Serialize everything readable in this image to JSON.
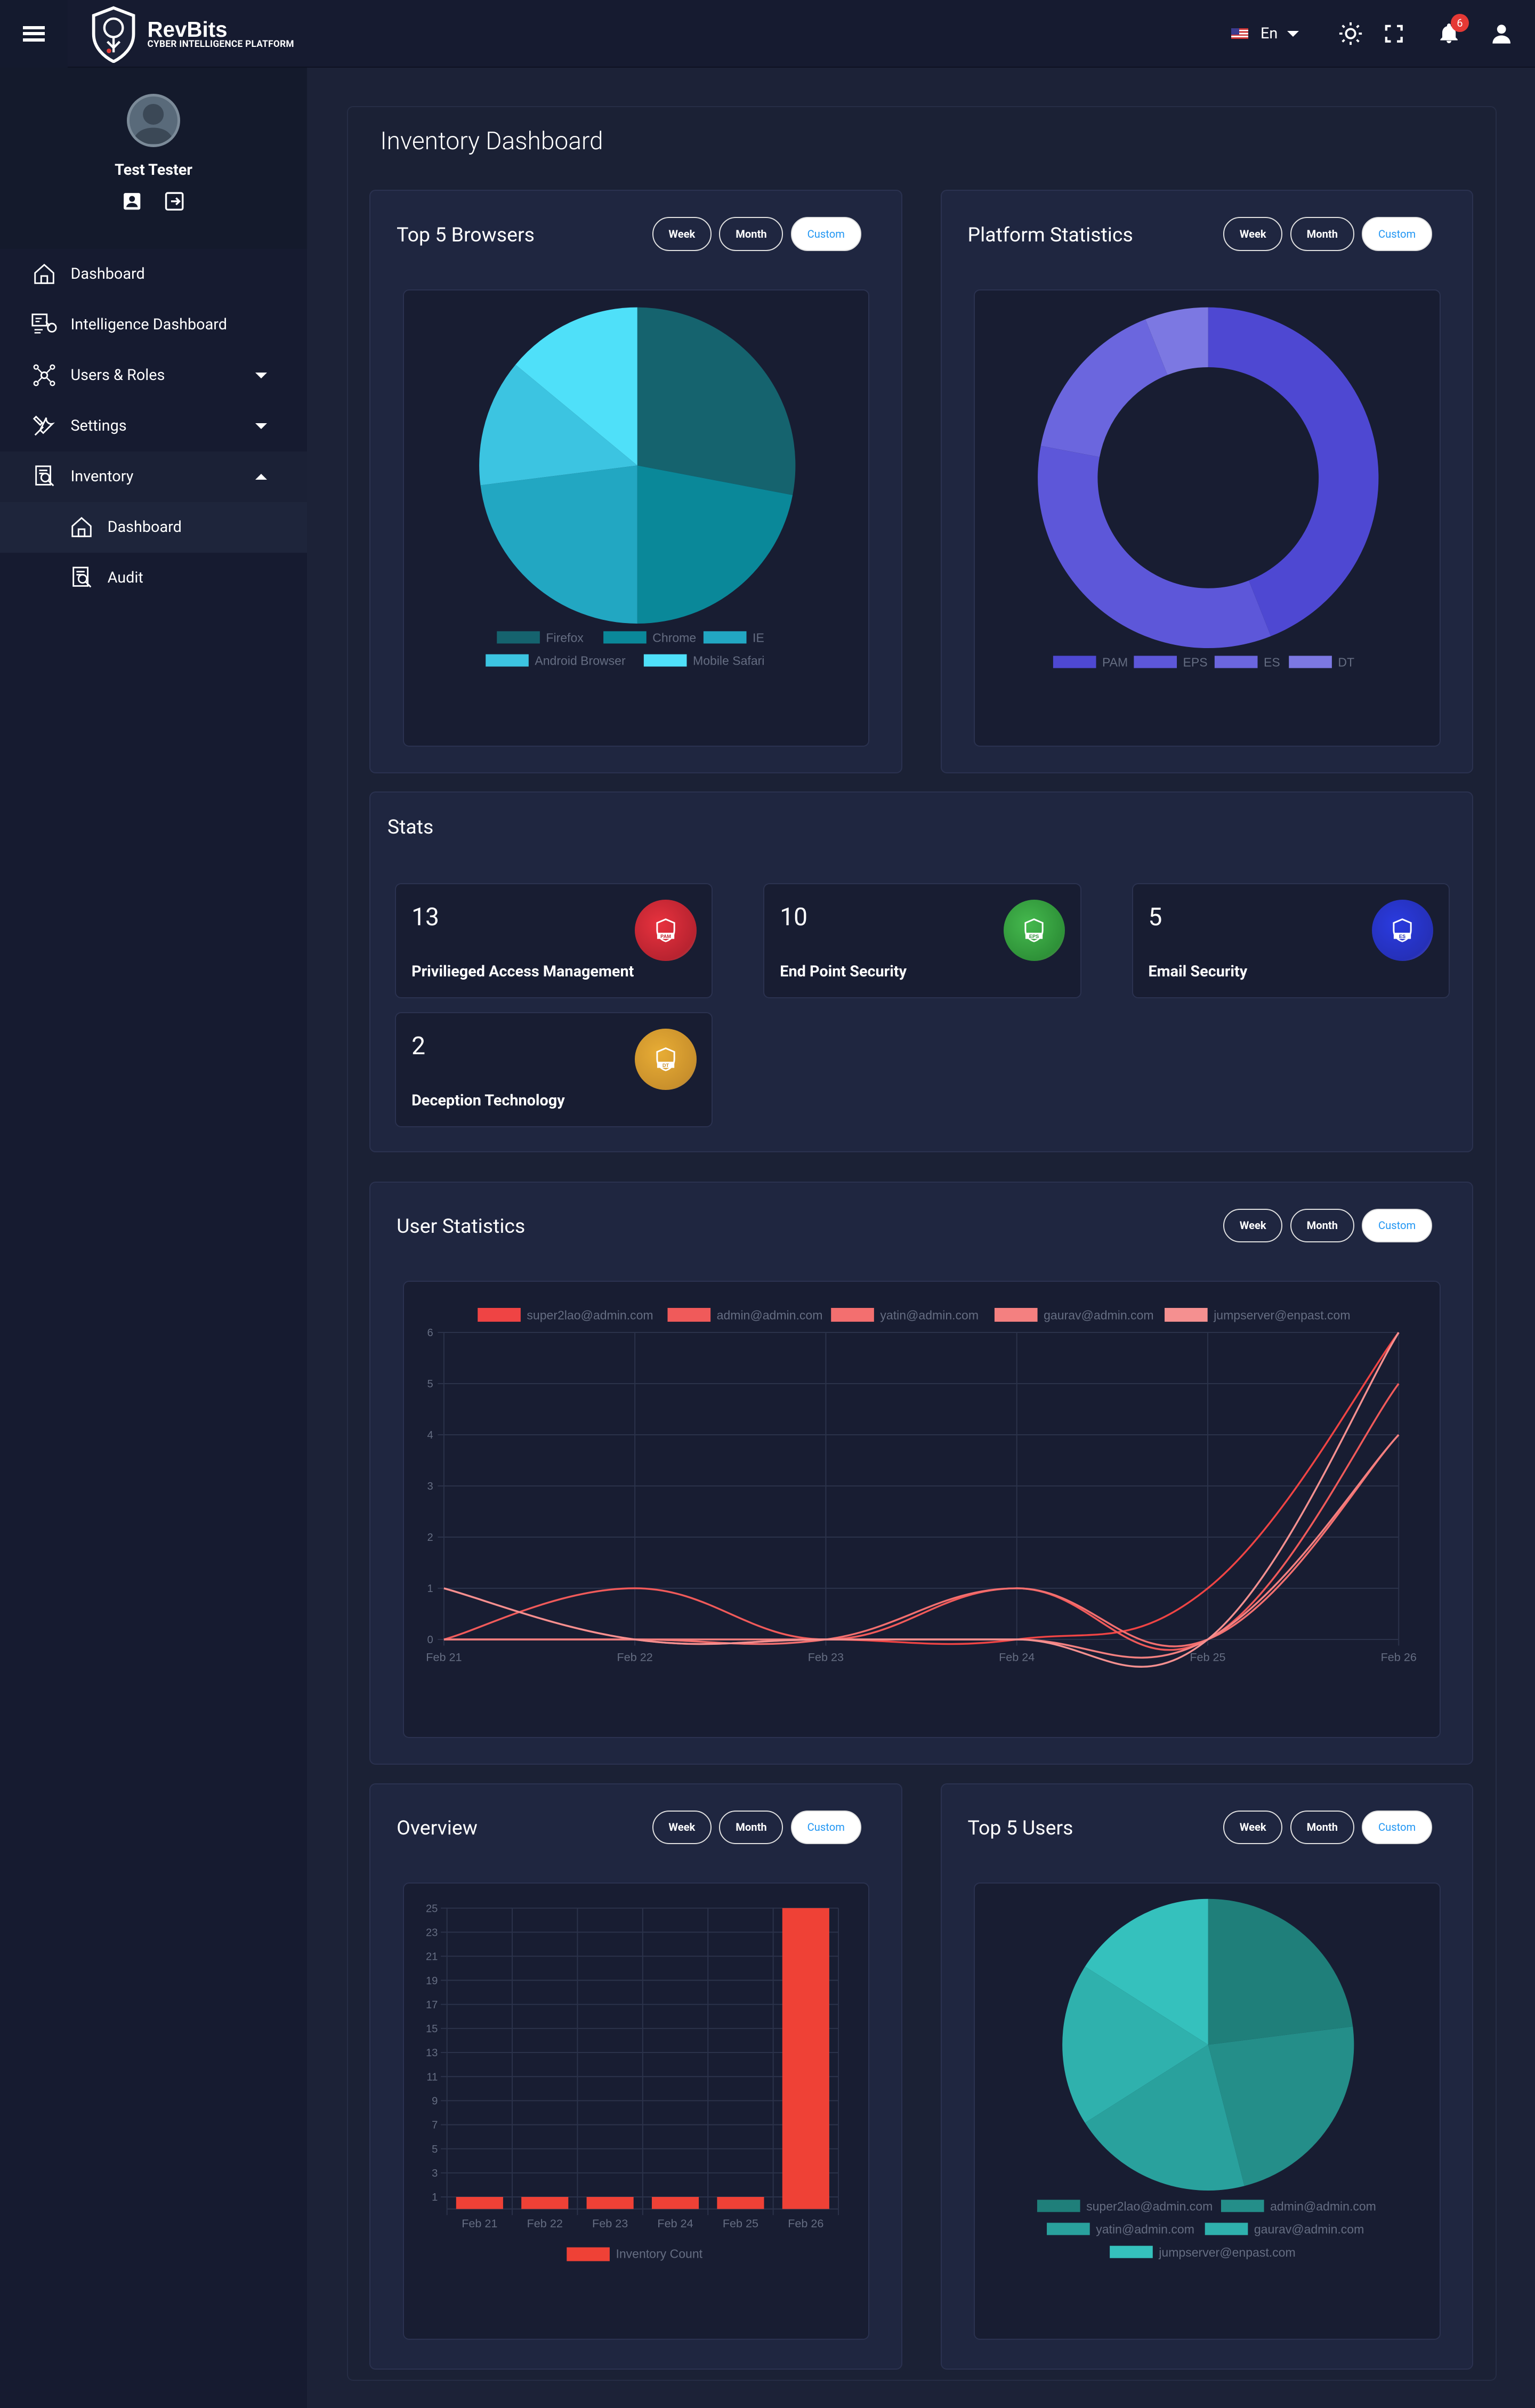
{
  "topbar": {
    "brand": "RevBits",
    "tagline": "CYBER INTELLIGENCE PLATFORM",
    "language": "En",
    "notifications": "6"
  },
  "profile": {
    "name": "Test Tester"
  },
  "sidebar": {
    "items": [
      {
        "label": "Dashboard",
        "icon": "home-icon"
      },
      {
        "label": "Intelligence Dashboard",
        "icon": "intelligence-icon"
      },
      {
        "label": "Users & Roles",
        "icon": "network-icon"
      },
      {
        "label": "Settings",
        "icon": "tools-icon"
      },
      {
        "label": "Inventory",
        "icon": "inventory-icon"
      }
    ],
    "subitems": [
      {
        "label": "Dashboard"
      },
      {
        "label": "Audit"
      }
    ]
  },
  "page": {
    "title": "Inventory Dashboard"
  },
  "filters": {
    "week": "Week",
    "month": "Month",
    "custom": "Custom"
  },
  "browsers": {
    "title": "Top 5 Browsers",
    "chart_data": {
      "type": "pie",
      "labels": [
        "Firefox",
        "Chrome",
        "IE",
        "Android Browser",
        "Mobile Safari"
      ],
      "values": [
        28,
        22,
        23,
        13,
        14
      ],
      "colors": [
        "#15636e",
        "#0a8899",
        "#22a7c2",
        "#3cc4e1",
        "#4fe0f9"
      ]
    }
  },
  "platform": {
    "title": "Platform Statistics",
    "chart_data": {
      "type": "pie",
      "labels": [
        "PAM",
        "EPS",
        "ES",
        "DT"
      ],
      "values": [
        44,
        34,
        16,
        6
      ],
      "colors": [
        "#4e48d2",
        "#5d57d9",
        "#6b66de",
        "#7c78e2"
      ]
    }
  },
  "stats": {
    "title": "Stats",
    "items": [
      {
        "value": "13",
        "label": "Privilieged Access Management",
        "badge": "PAM",
        "color": "#e53945"
      },
      {
        "value": "10",
        "label": "End Point Security",
        "badge": "EPS",
        "color": "#3fab4c"
      },
      {
        "value": "5",
        "label": "Email Security",
        "badge": "ES",
        "color": "#2c3bd6"
      },
      {
        "value": "2",
        "label": "Deception Technology",
        "badge": "DT",
        "color": "#e3a632"
      }
    ]
  },
  "userstats": {
    "title": "User Statistics",
    "chart_data": {
      "type": "line",
      "x": [
        "Feb 21",
        "Feb 22",
        "Feb 23",
        "Feb 24",
        "Feb 25",
        "Feb 26"
      ],
      "ylim": [
        0,
        6
      ],
      "series": [
        {
          "name": "super2lao@admin.com",
          "values": [
            1,
            0,
            0,
            0,
            1,
            6
          ],
          "color": "#ef4444"
        },
        {
          "name": "admin@admin.com",
          "values": [
            0,
            1,
            0,
            1,
            0,
            5
          ],
          "color": "#f05a5a"
        },
        {
          "name": "yatin@admin.com",
          "values": [
            0,
            0,
            0,
            1,
            0,
            4
          ],
          "color": "#f36f6f"
        },
        {
          "name": "gaurav@admin.com",
          "values": [
            0,
            0,
            0,
            0,
            0,
            4
          ],
          "color": "#f48080"
        },
        {
          "name": "jumpserver@enpast.com",
          "values": [
            1,
            0,
            0,
            0,
            0,
            6
          ],
          "color": "#f59090"
        }
      ]
    }
  },
  "overview": {
    "title": "Overview",
    "chart_data": {
      "type": "bar",
      "categories": [
        "Feb 21",
        "Feb 22",
        "Feb 23",
        "Feb 24",
        "Feb 25",
        "Feb 26"
      ],
      "values": [
        1,
        1,
        1,
        1,
        1,
        25
      ],
      "yticks": [
        1,
        3,
        5,
        7,
        9,
        11,
        13,
        15,
        17,
        19,
        21,
        23,
        25
      ],
      "series_name": "Inventory Count",
      "color": "#ef4136"
    }
  },
  "topusers": {
    "title": "Top 5 Users",
    "chart_data": {
      "type": "pie",
      "labels": [
        "super2lao@admin.com",
        "admin@admin.com",
        "yatin@admin.com",
        "gaurav@admin.com",
        "jumpserver@enpast.com"
      ],
      "values": [
        23,
        23,
        20,
        18,
        16
      ],
      "colors": [
        "#1f7f7a",
        "#248e89",
        "#29a19d",
        "#2fb1ad",
        "#35c1bd"
      ]
    }
  }
}
